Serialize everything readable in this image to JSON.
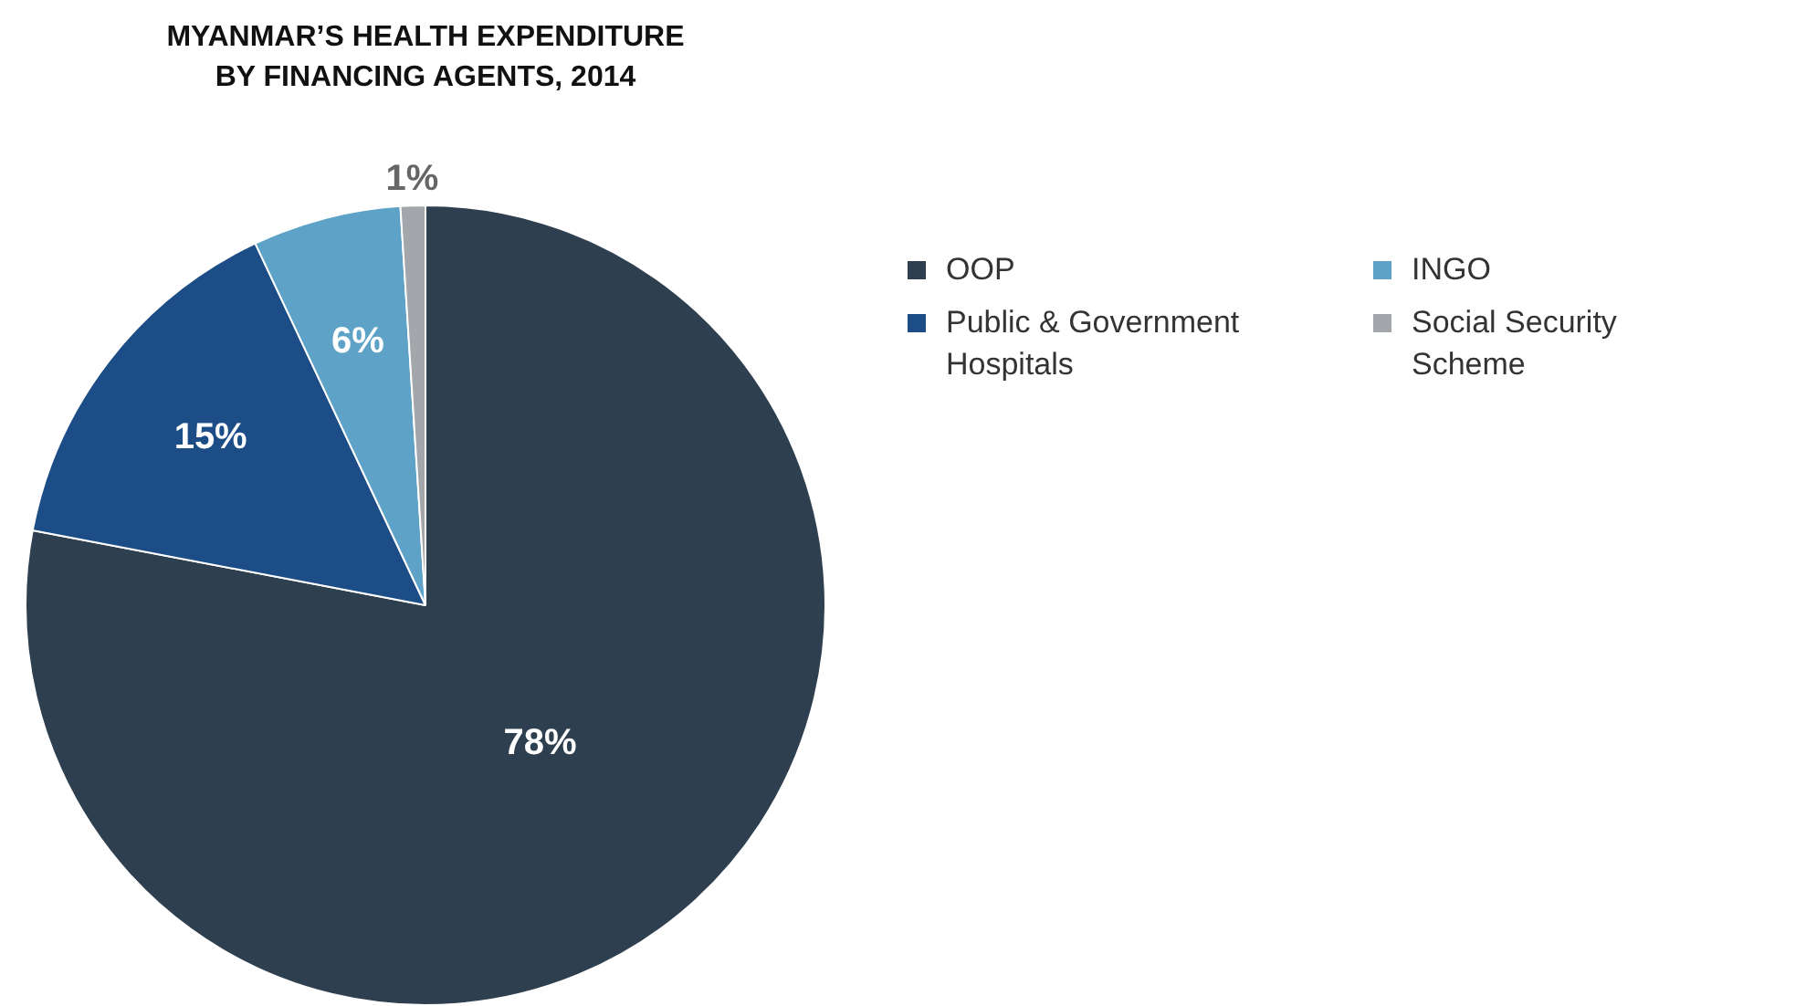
{
  "chart_data": {
    "type": "pie",
    "title": "MYANMAR’S HEALTH EXPENDITURE\nBY FINANCING AGENTS, 2014",
    "categories": [
      "OOP",
      "Public & Government Hospitals",
      "INGO",
      "Social Security Scheme"
    ],
    "values": [
      78,
      15,
      6,
      1
    ],
    "colors": [
      "#2e3f50",
      "#1c4d87",
      "#5ea2c8",
      "#a3a6aa"
    ],
    "value_labels": [
      "78%",
      "15%",
      "6%",
      "1%"
    ],
    "legend": "top right"
  }
}
